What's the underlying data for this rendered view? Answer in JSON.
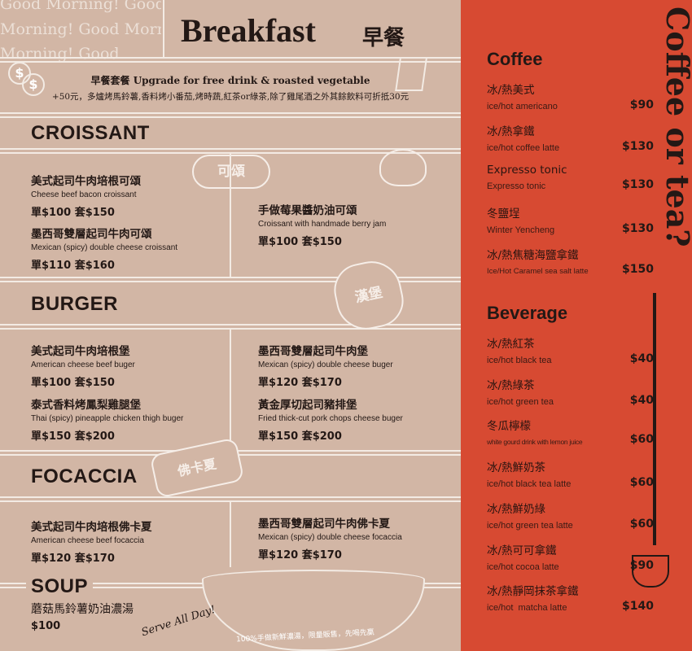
{
  "breakfast": {
    "title": "Breakfast",
    "title_zh": "早餐",
    "greeting": [
      "Good Morning! Good",
      "Morning! Good Morni",
      "Morning! Good"
    ],
    "upgrade": {
      "title_zh": "早餐套餐",
      "title_en": "Upgrade for free drink & roasted vegetable",
      "detail": "+50元，多爐烤馬鈴薯,香料烤小番茄,烤時蔬,紅茶or綠茶,除了雞尾酒之外其餘飲料可折抵30元"
    },
    "sections": [
      {
        "name": "CROISSANT",
        "badge": "可頌",
        "items": [
          {
            "zh": "美式起司牛肉培根可頌",
            "en": "Cheese beef bacon croissant",
            "price": "單$100  套$150"
          },
          {
            "zh": "墨西哥雙層起司牛肉可頌",
            "en": "Mexican (spicy) double cheese croissant",
            "price": "單$110  套$160"
          },
          {
            "zh": "手做莓果醬奶油可頌",
            "en": "Croissant with handmade berry jam",
            "price": "單$100  套$150"
          }
        ]
      },
      {
        "name": "BURGER",
        "badge": "漢堡",
        "items": [
          {
            "zh": "美式起司牛肉培根堡",
            "en": "American cheese beef buger",
            "price": "單$100  套$150"
          },
          {
            "zh": "泰式香料烤鳳梨雞腿堡",
            "en": "Thai (spicy) pineapple chicken thigh buger",
            "price": "單$150  套$200"
          },
          {
            "zh": "墨西哥雙層起司牛肉堡",
            "en": "Mexican (spicy) double cheese buger",
            "price": "單$120  套$170"
          },
          {
            "zh": "黃金厚切起司豬排堡",
            "en": "Fried thick-cut pork chops cheese buger",
            "price": "單$150  套$200"
          }
        ]
      },
      {
        "name": "FOCACCIA",
        "badge": "佛卡夏",
        "items": [
          {
            "zh": "美式起司牛肉培根佛卡夏",
            "en": "American cheese beef focaccia",
            "price": "單$120  套$170"
          },
          {
            "zh": "墨西哥雙層起司牛肉佛卡夏",
            "en": "Mexican (spicy) double cheese focaccia",
            "price": "單$120  套$170"
          }
        ]
      },
      {
        "name": "SOUP",
        "items": [
          {
            "zh": "蘑菇馬鈴薯奶油濃湯",
            "price": "$100"
          }
        ],
        "note": "Serve All Day!",
        "footer": "100%手做新鮮濃湯，限量販售，先喝先贏"
      }
    ]
  },
  "drinks": {
    "side_title": "Coffee or tea?",
    "coffee": {
      "title": "Coffee",
      "items": [
        {
          "zh": "冰/熱美式",
          "en": "ice/hot americano",
          "price": "$90"
        },
        {
          "zh": "冰/熱拿鐵",
          "en": "ice/hot coffee latte",
          "price": "$130"
        },
        {
          "zh": "Expresso tonic",
          "en": "Expresso tonic",
          "price": "$130"
        },
        {
          "zh": "冬鹽埕",
          "en": "Winter Yencheng",
          "price": "$130"
        },
        {
          "zh": "冰/熱焦糖海鹽拿鐵",
          "en": "Ice/Hot Caramel sea salt latte",
          "price": "$150"
        }
      ]
    },
    "beverage": {
      "title": "Beverage",
      "items": [
        {
          "zh": "冰/熱紅茶",
          "en": "ice/hot black tea",
          "price": "$40"
        },
        {
          "zh": "冰/熱綠茶",
          "en": "ice/hot green tea",
          "price": "$40"
        },
        {
          "zh": "冬瓜檸檬",
          "en": "white gourd drink with lemon juice",
          "price": "$60"
        },
        {
          "zh": "冰/熱鮮奶茶",
          "en": "ice/hot black tea latte",
          "price": "$60"
        },
        {
          "zh": "冰/熱鮮奶綠",
          "en": "ice/hot green tea latte",
          "price": "$60"
        },
        {
          "zh": "冰/熱可可拿鐵",
          "en": "ice/hot cocoa latte",
          "price": "$90"
        },
        {
          "zh": "冰/熱靜岡抹茶拿鐵",
          "en": "ice/hot  matcha latte",
          "price": "$140"
        }
      ]
    }
  },
  "colors": {
    "left_bg": "#d2b6a5",
    "right_bg": "#d74a32",
    "line": "#f3ebe4",
    "text": "#231815"
  }
}
